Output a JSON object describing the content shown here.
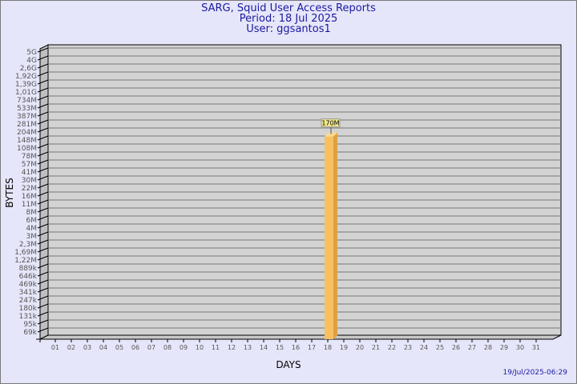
{
  "header": {
    "title": "SARG, Squid User Access Reports",
    "period": "Period: 18 Jul 2025",
    "user": "User: ggsantos1"
  },
  "footer": {
    "timestamp": "19/Jul/2025-06:29"
  },
  "chart_data": {
    "type": "bar",
    "xlabel": "DAYS",
    "ylabel": "BYTES",
    "y_scale": "log",
    "grid": true,
    "categories": [
      "01",
      "02",
      "03",
      "04",
      "05",
      "06",
      "07",
      "08",
      "09",
      "10",
      "11",
      "12",
      "13",
      "14",
      "15",
      "16",
      "17",
      "18",
      "19",
      "20",
      "21",
      "22",
      "23",
      "24",
      "25",
      "26",
      "27",
      "28",
      "29",
      "30",
      "31"
    ],
    "y_ticks": [
      "69k",
      "95k",
      "131k",
      "180k",
      "247k",
      "341k",
      "469k",
      "646k",
      "889k",
      "1,22M",
      "1,69M",
      "2,3M",
      "3M",
      "4M",
      "6M",
      "8M",
      "11M",
      "16M",
      "22M",
      "30M",
      "41M",
      "57M",
      "78M",
      "108M",
      "148M",
      "204M",
      "281M",
      "387M",
      "533M",
      "734M",
      "1,01G",
      "1,39G",
      "1,92G",
      "2,6G",
      "4G",
      "5G"
    ],
    "bars": [
      {
        "day": "18",
        "value_label": "170M",
        "value": 170000000
      }
    ],
    "colors": {
      "wall": "#d3d3d3",
      "bar": "#f8c060",
      "bar_side": "#e0a040",
      "label_box": "#f0e68c"
    }
  }
}
